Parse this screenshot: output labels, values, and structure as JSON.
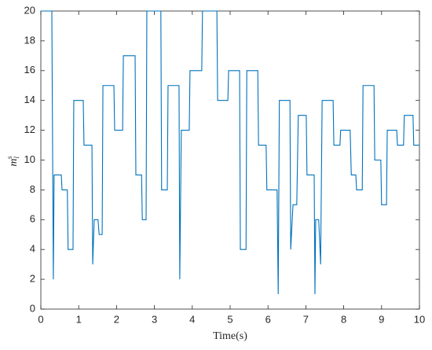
{
  "chart_data": {
    "type": "line",
    "xlabel": "Time(s)",
    "ylabel": "m",
    "ylabel_sub": "l",
    "ylabel_sup": "s",
    "xlim": [
      0,
      10
    ],
    "ylim": [
      0,
      20
    ],
    "xticks": [
      0,
      1,
      2,
      3,
      4,
      5,
      6,
      7,
      8,
      9,
      10
    ],
    "yticks": [
      0,
      2,
      4,
      6,
      8,
      10,
      12,
      14,
      16,
      18,
      20
    ],
    "grid": false,
    "series": [
      {
        "color": "#0072BD",
        "x": [
          0,
          0.29,
          0.33,
          0.35,
          0.54,
          0.56,
          0.7,
          0.72,
          0.85,
          0.87,
          1.12,
          1.14,
          1.35,
          1.37,
          1.41,
          1.51,
          1.54,
          1.62,
          1.64,
          1.93,
          1.95,
          2.16,
          2.18,
          2.49,
          2.51,
          2.66,
          2.68,
          2.78,
          2.8,
          3.17,
          3.19,
          3.34,
          3.36,
          3.65,
          3.67,
          3.71,
          3.92,
          3.94,
          4.25,
          4.27,
          4.65,
          4.67,
          4.94,
          4.96,
          5.25,
          5.27,
          5.42,
          5.44,
          5.73,
          5.75,
          5.95,
          5.97,
          6.24,
          6.27,
          6.3,
          6.58,
          6.6,
          6.66,
          6.76,
          6.8,
          7.01,
          7.03,
          7.22,
          7.24,
          7.26,
          7.34,
          7.39,
          7.43,
          7.72,
          7.74,
          7.9,
          7.92,
          8.17,
          8.2,
          8.32,
          8.34,
          8.49,
          8.51,
          8.8,
          8.82,
          8.98,
          9.0,
          9.13,
          9.15,
          9.4,
          9.42,
          9.58,
          9.6,
          9.83,
          9.85,
          10
        ],
        "values": [
          20,
          20,
          2,
          9,
          9,
          8,
          8,
          4,
          4,
          14,
          14,
          11,
          11,
          3,
          6,
          6,
          5,
          5,
          15,
          15,
          12,
          12,
          17,
          17,
          9,
          9,
          6,
          6,
          20,
          20,
          8,
          8,
          15,
          15,
          2,
          12,
          12,
          16,
          16,
          20,
          20,
          14,
          14,
          16,
          16,
          4,
          4,
          16,
          16,
          11,
          11,
          8,
          8,
          1,
          14,
          14,
          4,
          7,
          7,
          13,
          13,
          9,
          9,
          1,
          6,
          6,
          3,
          14,
          14,
          11,
          11,
          12,
          12,
          9,
          9,
          8,
          8,
          15,
          15,
          10,
          10,
          7,
          7,
          12,
          12,
          11,
          11,
          13,
          13,
          11,
          11
        ]
      }
    ]
  }
}
